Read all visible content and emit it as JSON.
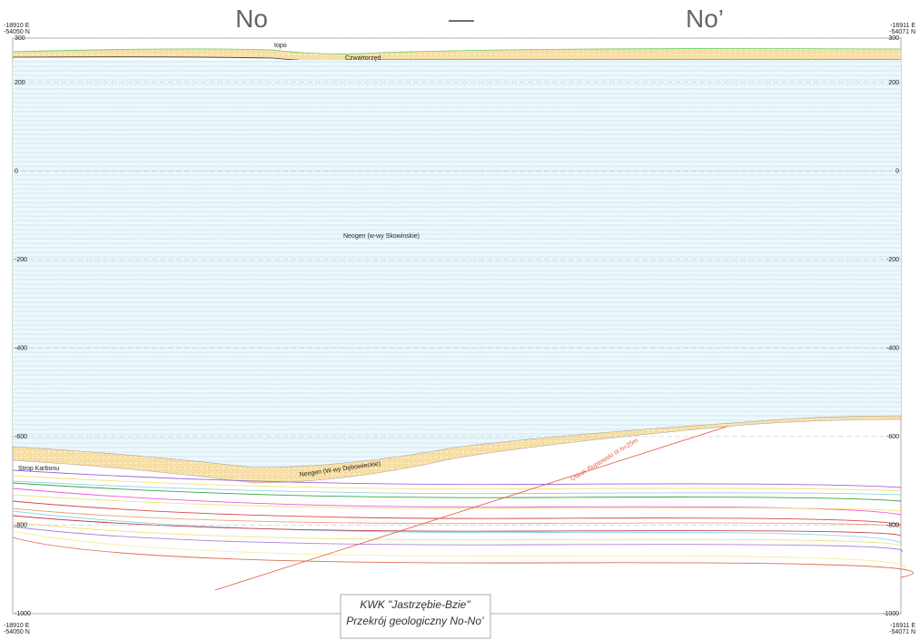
{
  "header": {
    "left": "No",
    "dash": "—",
    "right": "No’"
  },
  "corners": {
    "top_left": [
      "-18910 E",
      "-54050 N"
    ],
    "top_right": [
      "-16911 E",
      "-54071 N"
    ],
    "bottom_left": [
      "-18910 E",
      "-54050 N"
    ],
    "bottom_right": [
      "-16911 E",
      "-54071 N"
    ]
  },
  "axis": {
    "left_ticks": [
      300,
      200,
      0,
      -200,
      -400,
      -600,
      -800,
      -1000
    ],
    "right_ticks": [
      300,
      200,
      0,
      -200,
      -400,
      -600,
      -800,
      -1000
    ]
  },
  "labels": {
    "topo": "topo",
    "quaternary": "Czwartorzęd",
    "neogen_upper": "Neogen (w-wy Skowinskie)",
    "neogen_lower": "Neogen (W-wy Dębowieckie)",
    "carbon_top": "Strop Karbonu",
    "fault": "Uskok Ruptowski III h=25m"
  },
  "title_box": [
    "KWK \"Jastrzębie-Bzie\"",
    "Przekrój geologiczny No-No’"
  ]
}
